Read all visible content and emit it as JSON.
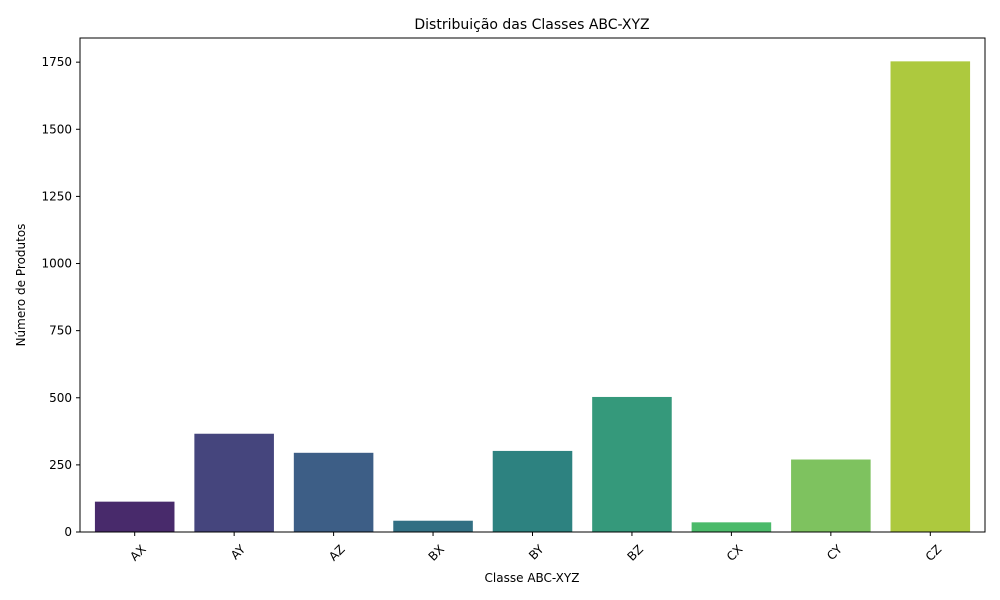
{
  "chart_data": {
    "type": "bar",
    "title": "Distribuição das Classes ABC-XYZ",
    "xlabel": "Classe ABC-XYZ",
    "ylabel": "Número de Produtos",
    "categories": [
      "AX",
      "AY",
      "AZ",
      "BX",
      "BY",
      "BZ",
      "CX",
      "CY",
      "CZ"
    ],
    "values": [
      113,
      366,
      295,
      42,
      302,
      503,
      36,
      270,
      1753
    ],
    "colors": [
      "#482a6b",
      "#45457d",
      "#3d5e86",
      "#326f83",
      "#2d8280",
      "#35997b",
      "#4bba6a",
      "#7ec25f",
      "#adc93e"
    ],
    "ylim": [
      0,
      1840
    ],
    "yticks": [
      0,
      250,
      500,
      750,
      1000,
      1250,
      1500,
      1750
    ],
    "grid": false,
    "x_tick_rotation": 45
  }
}
